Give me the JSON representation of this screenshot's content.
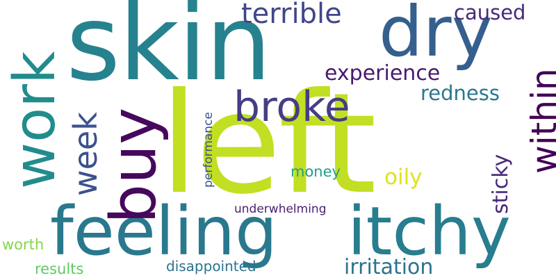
{
  "words": {
    "left": "left",
    "skin": "skin",
    "dry": "dry",
    "feeling": "feeling",
    "itchy": "itchy",
    "buy": "buy",
    "work": "work",
    "broke": "broke",
    "within": "within",
    "week": "week",
    "terrible": "terrible",
    "caused": "caused",
    "experience": "experience",
    "redness": "redness",
    "irritation": "irritation",
    "oily": "oily",
    "sticky": "sticky",
    "money": "money",
    "performance": "performance",
    "underwhelming": "underwhelming",
    "disappointed": "disappointed",
    "worth": "worth",
    "results": "results"
  },
  "colors": {
    "left": "#c2df23",
    "skin": "#26828e",
    "dry": "#355f8d",
    "feeling": "#2a788e",
    "itchy": "#287d8e",
    "buy": "#46085c",
    "work": "#228c8d",
    "broke": "#433e85",
    "within": "#440154",
    "week": "#3b528b",
    "terrible": "#404688",
    "caused": "#472a7a",
    "experience": "#481b6d",
    "redness": "#2a788e",
    "irritation": "#2c728e",
    "oily": "#dde318",
    "sticky": "#482878",
    "money": "#1f9e89",
    "performance": "#3b528b",
    "underwhelming": "#481f70",
    "disappointed": "#2c728e",
    "worth": "#86d549",
    "results": "#5ec962"
  }
}
